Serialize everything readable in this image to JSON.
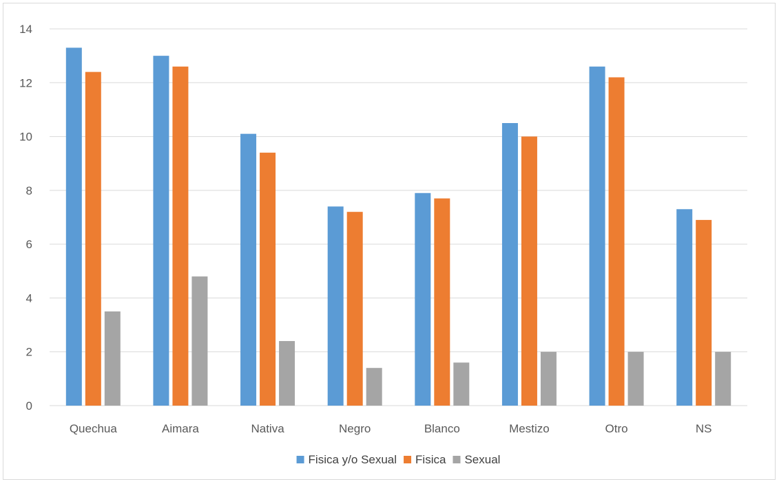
{
  "chart_data": {
    "type": "bar",
    "categories": [
      "Quechua",
      "Aimara",
      "Nativa",
      "Negro",
      "Blanco",
      "Mestizo",
      "Otro",
      "NS"
    ],
    "series": [
      {
        "name": "Fisica y/o Sexual",
        "color": "#5b9bd5",
        "values": [
          13.3,
          13.0,
          10.1,
          7.4,
          7.9,
          10.5,
          12.6,
          7.3
        ]
      },
      {
        "name": "Fisica",
        "color": "#ed7d31",
        "values": [
          12.4,
          12.6,
          9.4,
          7.2,
          7.7,
          10.0,
          12.2,
          6.9
        ]
      },
      {
        "name": "Sexual",
        "color": "#a5a5a5",
        "values": [
          3.5,
          4.8,
          2.4,
          1.4,
          1.6,
          2.0,
          2.0,
          2.0
        ]
      }
    ],
    "ylim": [
      0,
      14
    ],
    "yticks": [
      0,
      2,
      4,
      6,
      8,
      10,
      12,
      14
    ],
    "grid": true,
    "legend_position": "bottom",
    "gridline_color": "#d9d9d9"
  }
}
